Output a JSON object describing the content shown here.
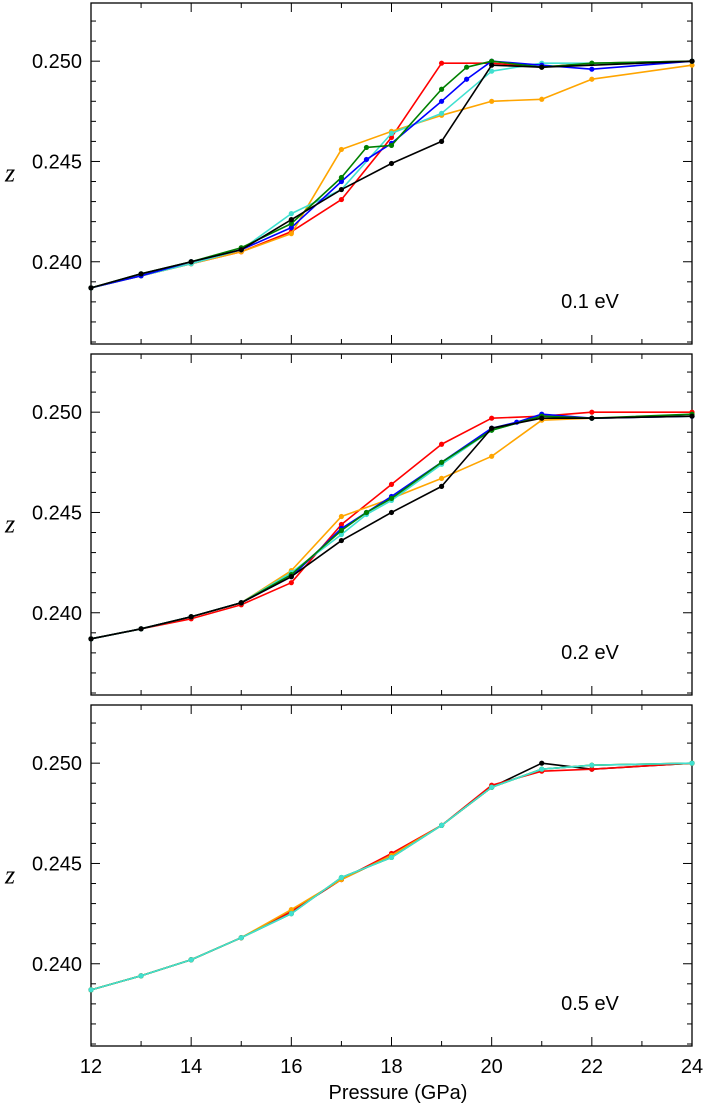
{
  "figure": {
    "xlabel": "Pressure (GPa)"
  },
  "chart_data": [
    {
      "type": "line",
      "annotation": "0.1 eV",
      "ylabel": "z",
      "xlim": [
        12,
        24
      ],
      "ylim": [
        0.2359,
        0.2529
      ],
      "xticks": [
        12,
        14,
        16,
        18,
        20,
        22,
        24
      ],
      "xtick_labels": [
        "12",
        "14",
        "16",
        "18",
        "20",
        "22",
        "24"
      ],
      "yticks": [
        0.24,
        0.245,
        0.25
      ],
      "ytick_labels": [
        "0.240",
        "0.245",
        "0.250"
      ],
      "grid": false,
      "series": [
        {
          "color": "#ff0000",
          "x": [
            12,
            13,
            14,
            15,
            16,
            17,
            18,
            19,
            20,
            21,
            22,
            24
          ],
          "y": [
            0.2387,
            0.2393,
            0.2399,
            0.2405,
            0.2415,
            0.2431,
            0.2462,
            0.2499,
            0.2499,
            0.2497,
            0.2499,
            0.25
          ]
        },
        {
          "color": "#ffa500",
          "x": [
            12,
            13,
            14,
            15,
            16,
            17,
            18,
            19,
            20,
            21,
            22,
            24
          ],
          "y": [
            0.2387,
            0.2393,
            0.2399,
            0.2405,
            0.2414,
            0.2456,
            0.2465,
            0.2473,
            0.248,
            0.2481,
            0.2491,
            0.2498
          ]
        },
        {
          "color": "#40e0d0",
          "x": [
            12,
            13,
            14,
            15,
            16,
            17,
            18,
            19,
            20,
            21,
            22,
            24
          ],
          "y": [
            0.2387,
            0.2393,
            0.2399,
            0.2406,
            0.2424,
            0.2436,
            0.2464,
            0.2474,
            0.2495,
            0.2499,
            0.2499,
            0.25
          ]
        },
        {
          "color": "#0000ff",
          "x": [
            12,
            13,
            14,
            15,
            16,
            17,
            17.5,
            18,
            19,
            19.5,
            20,
            21,
            22,
            24
          ],
          "y": [
            0.2387,
            0.2393,
            0.24,
            0.2406,
            0.2417,
            0.244,
            0.2451,
            0.2459,
            0.248,
            0.2491,
            0.25,
            0.2498,
            0.2496,
            0.25
          ]
        },
        {
          "color": "#008000",
          "x": [
            12,
            13,
            14,
            15,
            16,
            17,
            17.5,
            18,
            19,
            19.5,
            20,
            21,
            22,
            24
          ],
          "y": [
            0.2387,
            0.2394,
            0.24,
            0.2407,
            0.2419,
            0.2442,
            0.2457,
            0.2458,
            0.2486,
            0.2497,
            0.25,
            0.2497,
            0.2499,
            0.25
          ]
        },
        {
          "color": "#000000",
          "x": [
            12,
            13,
            14,
            15,
            16,
            17,
            18,
            19,
            20,
            21,
            24
          ],
          "y": [
            0.2387,
            0.2394,
            0.24,
            0.2406,
            0.2421,
            0.2436,
            0.2449,
            0.246,
            0.2498,
            0.2497,
            0.25
          ]
        }
      ]
    },
    {
      "type": "line",
      "annotation": "0.2 eV",
      "ylabel": "z",
      "xlim": [
        12,
        24
      ],
      "ylim": [
        0.2359,
        0.2529
      ],
      "xticks": [
        12,
        14,
        16,
        18,
        20,
        22,
        24
      ],
      "xtick_labels": [
        "12",
        "14",
        "16",
        "18",
        "20",
        "22",
        "24"
      ],
      "yticks": [
        0.24,
        0.245,
        0.25
      ],
      "ytick_labels": [
        "0.240",
        "0.245",
        "0.250"
      ],
      "grid": false,
      "series": [
        {
          "color": "#ff0000",
          "x": [
            12,
            13,
            14,
            15,
            16,
            17,
            18,
            19,
            20,
            21,
            22,
            24
          ],
          "y": [
            0.2387,
            0.2392,
            0.2397,
            0.2404,
            0.2415,
            0.2444,
            0.2464,
            0.2484,
            0.2497,
            0.2498,
            0.25,
            0.25
          ]
        },
        {
          "color": "#ffa500",
          "x": [
            12,
            13,
            14,
            15,
            16,
            17,
            18,
            19,
            20,
            21,
            22,
            24
          ],
          "y": [
            0.2387,
            0.2392,
            0.2398,
            0.2405,
            0.2421,
            0.2448,
            0.2457,
            0.2467,
            0.2478,
            0.2496,
            0.2497,
            0.2498
          ]
        },
        {
          "color": "#40e0d0",
          "x": [
            12,
            13,
            14,
            15,
            16,
            17,
            17.5,
            18,
            19,
            20,
            21,
            22,
            24
          ],
          "y": [
            0.2387,
            0.2392,
            0.2398,
            0.2405,
            0.242,
            0.2439,
            0.2449,
            0.2456,
            0.2474,
            0.2491,
            0.2498,
            0.2497,
            0.2498
          ]
        },
        {
          "color": "#0000ff",
          "x": [
            12,
            13,
            14,
            15,
            16,
            17,
            17.5,
            18,
            19,
            20,
            20.5,
            21,
            22,
            24
          ],
          "y": [
            0.2387,
            0.2392,
            0.2398,
            0.2405,
            0.2418,
            0.2442,
            0.245,
            0.2458,
            0.2475,
            0.2492,
            0.2495,
            0.2499,
            0.2497,
            0.2498
          ]
        },
        {
          "color": "#008000",
          "x": [
            12,
            13,
            14,
            15,
            16,
            17,
            17.5,
            18,
            19,
            20,
            21,
            22,
            24
          ],
          "y": [
            0.2387,
            0.2392,
            0.2398,
            0.2405,
            0.2419,
            0.2441,
            0.245,
            0.2457,
            0.2475,
            0.2491,
            0.2498,
            0.2497,
            0.2499
          ]
        },
        {
          "color": "#000000",
          "x": [
            12,
            13,
            14,
            15,
            16,
            17,
            18,
            19,
            20,
            21,
            22,
            24
          ],
          "y": [
            0.2387,
            0.2392,
            0.2398,
            0.2405,
            0.2418,
            0.2436,
            0.245,
            0.2463,
            0.2492,
            0.2497,
            0.2497,
            0.2498
          ]
        }
      ]
    },
    {
      "type": "line",
      "annotation": "0.5 eV",
      "ylabel": "z",
      "xlim": [
        12,
        24
      ],
      "ylim": [
        0.2359,
        0.2529
      ],
      "xticks": [
        12,
        14,
        16,
        18,
        20,
        22,
        24
      ],
      "xtick_labels": [
        "12",
        "14",
        "16",
        "18",
        "20",
        "22",
        "24"
      ],
      "yticks": [
        0.24,
        0.245,
        0.25
      ],
      "ytick_labels": [
        "0.240",
        "0.245",
        "0.250"
      ],
      "grid": false,
      "series": [
        {
          "color": "#000000",
          "x": [
            12,
            13,
            14,
            15,
            16,
            17,
            18,
            19,
            20,
            21,
            22,
            24
          ],
          "y": [
            0.2387,
            0.2394,
            0.2402,
            0.2413,
            0.2426,
            0.2442,
            0.2454,
            0.2469,
            0.2488,
            0.25,
            0.2497,
            0.25
          ]
        },
        {
          "color": "#ff0000",
          "x": [
            12,
            13,
            14,
            15,
            16,
            17,
            18,
            19,
            20,
            21,
            22,
            24
          ],
          "y": [
            0.2387,
            0.2394,
            0.2402,
            0.2413,
            0.2426,
            0.2442,
            0.2455,
            0.2469,
            0.2489,
            0.2496,
            0.2497,
            0.25
          ]
        },
        {
          "color": "#ffa500",
          "x": [
            12,
            13,
            14,
            15,
            16,
            17,
            18,
            19,
            20,
            21,
            22,
            24
          ],
          "y": [
            0.2387,
            0.2394,
            0.2402,
            0.2413,
            0.2427,
            0.2442,
            0.2454,
            0.2469,
            0.2488,
            0.2497,
            0.2499,
            0.25
          ]
        },
        {
          "color": "#008000",
          "x": [
            12,
            13,
            14,
            15,
            16,
            17,
            18,
            19,
            20,
            21,
            22,
            24
          ],
          "y": [
            0.2387,
            0.2394,
            0.2402,
            0.2413,
            0.2425,
            0.2443,
            0.2453,
            0.2469,
            0.2488,
            0.2497,
            0.2499,
            0.25
          ]
        },
        {
          "color": "#40e0d0",
          "x": [
            12,
            13,
            14,
            15,
            16,
            17,
            18,
            19,
            20,
            21,
            22,
            24
          ],
          "y": [
            0.2387,
            0.2394,
            0.2402,
            0.2413,
            0.2425,
            0.2443,
            0.2453,
            0.2469,
            0.2488,
            0.2497,
            0.2499,
            0.25
          ]
        }
      ]
    }
  ]
}
